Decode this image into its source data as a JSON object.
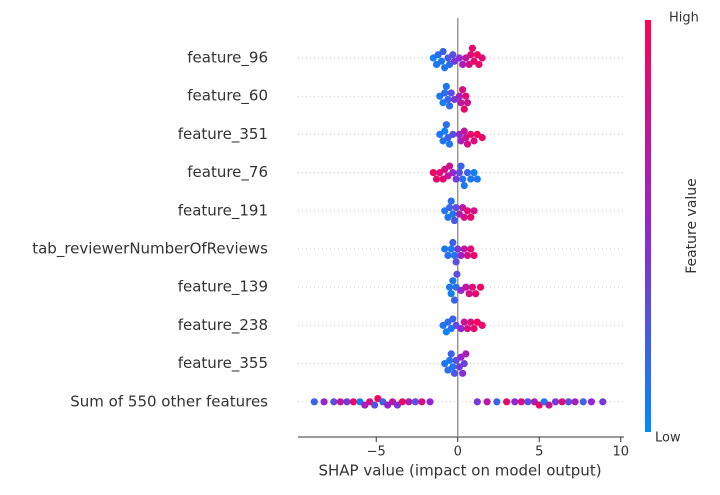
{
  "chart_data": {
    "type": "beeswarm",
    "xlabel": "SHAP value (impact on model output)",
    "xlim": [
      -9.8,
      10.2
    ],
    "xticks": [
      {
        "value": -5,
        "label": "−5"
      },
      0,
      5,
      10
    ],
    "colorbar": {
      "label": "Feature value",
      "high": "High",
      "low": "Low",
      "colors": [
        "#008bfb",
        "#9425d0",
        "#ff0051"
      ]
    },
    "series": [
      {
        "name": "feature_96",
        "values": [
          -1.5,
          -1.3,
          -1.2,
          -1.0,
          -0.9,
          -0.8,
          -0.6,
          -0.5,
          -0.3,
          -0.2,
          0.1,
          0.3,
          0.5,
          0.7,
          0.8,
          0.9,
          1.0,
          1.2,
          1.3,
          1.5
        ],
        "feature_values": [
          0.05,
          0.1,
          0.15,
          0.1,
          0.2,
          0.1,
          0.25,
          0.15,
          0.3,
          0.4,
          0.5,
          0.6,
          0.7,
          0.8,
          0.85,
          0.9,
          0.9,
          0.95,
          0.9,
          0.85
        ]
      },
      {
        "name": "feature_60",
        "values": [
          -1.1,
          -0.9,
          -0.8,
          -0.7,
          -0.6,
          -0.5,
          -0.4,
          -0.2,
          0.1,
          0.2,
          0.3,
          0.4,
          0.5,
          0.6
        ],
        "feature_values": [
          0.1,
          0.05,
          0.15,
          0.1,
          0.2,
          0.15,
          0.3,
          0.4,
          0.6,
          0.7,
          0.8,
          0.9,
          0.85,
          0.75
        ]
      },
      {
        "name": "feature_351",
        "values": [
          -1.1,
          -0.9,
          -0.8,
          -0.7,
          -0.6,
          -0.5,
          -0.3,
          0.1,
          0.2,
          0.4,
          0.5,
          0.6,
          0.8,
          1.0,
          1.2,
          1.5
        ],
        "feature_values": [
          0.1,
          0.1,
          0.05,
          0.15,
          0.2,
          0.1,
          0.3,
          0.5,
          0.6,
          0.7,
          0.75,
          0.8,
          0.9,
          0.85,
          0.95,
          0.9
        ]
      },
      {
        "name": "feature_76",
        "values": [
          -1.5,
          -1.3,
          -1.1,
          -0.9,
          -0.8,
          -0.6,
          -0.5,
          -0.3,
          -0.1,
          0.1,
          0.2,
          0.3,
          0.4,
          0.6,
          0.8,
          1.0,
          1.2
        ],
        "feature_values": [
          0.95,
          0.9,
          0.85,
          0.9,
          0.8,
          0.7,
          0.75,
          0.5,
          0.4,
          0.3,
          0.2,
          0.15,
          0.1,
          0.2,
          0.1,
          0.05,
          0.1
        ]
      },
      {
        "name": "feature_191",
        "values": [
          -0.8,
          -0.6,
          -0.5,
          -0.4,
          -0.3,
          -0.2,
          -0.1,
          0.1,
          0.3,
          0.4,
          0.6,
          0.8,
          1.0
        ],
        "feature_values": [
          0.1,
          0.1,
          0.2,
          0.15,
          0.1,
          0.25,
          0.3,
          0.6,
          0.7,
          0.8,
          0.85,
          0.9,
          0.8
        ]
      },
      {
        "name": "tab_reviewerNumberOfReviews",
        "values": [
          -0.8,
          -0.6,
          -0.4,
          -0.3,
          -0.2,
          -0.1,
          0.0,
          0.2,
          0.4,
          0.6,
          0.8,
          1.0
        ],
        "feature_values": [
          0.1,
          0.15,
          0.1,
          0.2,
          0.1,
          0.3,
          0.4,
          0.55,
          0.7,
          0.8,
          0.85,
          0.9
        ]
      },
      {
        "name": "feature_139",
        "values": [
          -0.5,
          -0.4,
          -0.3,
          -0.2,
          -0.1,
          -0.05,
          0.2,
          0.5,
          0.7,
          0.9,
          1.1,
          1.4
        ],
        "feature_values": [
          0.1,
          0.05,
          0.1,
          0.2,
          0.15,
          0.3,
          0.5,
          0.7,
          0.8,
          0.85,
          0.9,
          0.95
        ]
      },
      {
        "name": "feature_238",
        "values": [
          -0.9,
          -0.7,
          -0.6,
          -0.4,
          -0.3,
          -0.1,
          0.2,
          0.4,
          0.6,
          0.8,
          1.0,
          1.2,
          1.5
        ],
        "feature_values": [
          0.1,
          0.05,
          0.15,
          0.1,
          0.2,
          0.3,
          0.5,
          0.75,
          0.8,
          0.85,
          0.9,
          0.95,
          0.9
        ]
      },
      {
        "name": "feature_355",
        "values": [
          -0.8,
          -0.6,
          -0.5,
          -0.4,
          -0.3,
          -0.2,
          -0.1,
          0.1,
          0.2,
          0.3,
          0.4,
          0.5
        ],
        "feature_values": [
          0.1,
          0.15,
          0.1,
          0.2,
          0.1,
          0.25,
          0.3,
          0.4,
          0.5,
          0.45,
          0.35,
          0.6
        ]
      },
      {
        "name": "Sum of 550 other features",
        "values": [
          -8.8,
          -8.2,
          -7.6,
          -7.2,
          -6.8,
          -6.4,
          -6.0,
          -5.7,
          -5.4,
          -5.1,
          -4.9,
          -4.6,
          -4.3,
          -4.0,
          -3.7,
          -3.4,
          -3.0,
          -2.6,
          -2.2,
          -1.7,
          1.2,
          1.8,
          2.4,
          3.0,
          3.5,
          3.9,
          4.3,
          4.7,
          5.0,
          5.3,
          5.6,
          6.0,
          6.4,
          6.8,
          7.2,
          7.7,
          8.2,
          8.9
        ],
        "feature_values": [
          0.2,
          0.5,
          0.3,
          0.7,
          0.4,
          0.9,
          0.1,
          0.6,
          0.8,
          0.3,
          0.95,
          0.2,
          0.5,
          0.7,
          0.4,
          0.9,
          0.6,
          0.3,
          0.8,
          0.5,
          0.4,
          0.7,
          0.2,
          0.9,
          0.5,
          0.8,
          0.3,
          0.6,
          0.95,
          0.1,
          0.7,
          0.4,
          0.85,
          0.3,
          0.6,
          0.2,
          0.5,
          0.4
        ]
      }
    ]
  }
}
